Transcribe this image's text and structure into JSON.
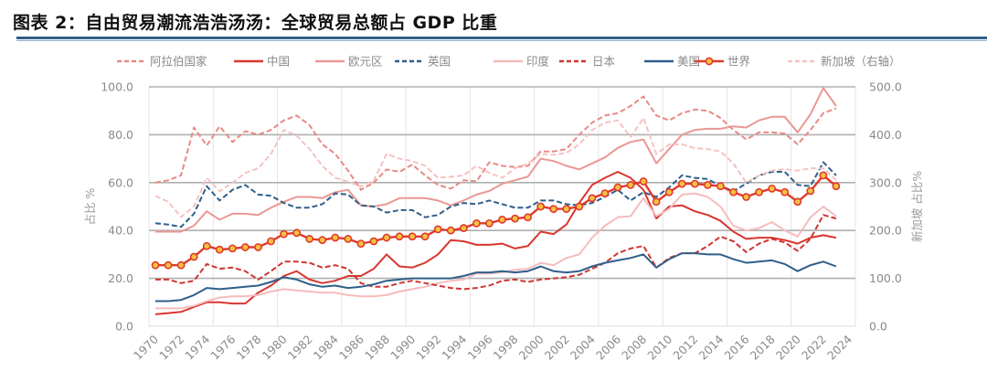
{
  "title": "图表 2：自由贸易潮流浩浩汤汤：全球贸易总额占 GDP 比重",
  "chart_data": {
    "type": "line",
    "title": "",
    "ylabel": "占比 %",
    "y2label": "新加坡 占比%",
    "ylim": [
      0,
      100
    ],
    "y2lim": [
      0,
      500
    ],
    "yticks": [
      "0.0",
      "20.0",
      "40.0",
      "60.0",
      "80.0",
      "100.0"
    ],
    "y2ticks": [
      "0.0",
      "100.0",
      "200.0",
      "300.0",
      "400.0",
      "500.0"
    ],
    "xticks": [
      "1970",
      "1972",
      "1974",
      "1976",
      "1978",
      "1980",
      "1982",
      "1984",
      "1986",
      "1988",
      "1990",
      "1992",
      "1994",
      "1996",
      "1998",
      "2000",
      "2002",
      "2004",
      "2006",
      "2008",
      "2010",
      "2012",
      "2014",
      "2016",
      "2018",
      "2020",
      "2022",
      "2024"
    ],
    "x_start": 1970,
    "x_end": 2024,
    "grid": "horizontal and vertical",
    "legend_position": "top",
    "series": [
      {
        "name": "阿拉伯国家",
        "style": "dashed",
        "color": "#e88a86",
        "axis": "left",
        "values": [
          60,
          61,
          63,
          83,
          75.5,
          83.5,
          77,
          81.5,
          80,
          82,
          86,
          88,
          84,
          76,
          72,
          65,
          57,
          60,
          65.5,
          64.5,
          67.5,
          63,
          59,
          57.5,
          61,
          60.5,
          68.5,
          67,
          66.5,
          67,
          73,
          73,
          74,
          80,
          85,
          88,
          89,
          92,
          96,
          88,
          86,
          89,
          90.5,
          90,
          87,
          82,
          78,
          81,
          81,
          80.5,
          76,
          82,
          89,
          91
        ]
      },
      {
        "name": "中国",
        "style": "solid",
        "color": "#d9362f",
        "axis": "left",
        "values": [
          5,
          5.5,
          6,
          8,
          10,
          10,
          9.5,
          9.5,
          14,
          17,
          21,
          23,
          19.5,
          18,
          19,
          21,
          21,
          24,
          30,
          25,
          24.5,
          26.5,
          30,
          36,
          35.5,
          34,
          34,
          34.5,
          32.5,
          33.5,
          39.5,
          38.5,
          42.5,
          51.5,
          59,
          62,
          64.5,
          62,
          57,
          45,
          50,
          50.5,
          48,
          46.5,
          44,
          39.5,
          36.5,
          37,
          37,
          36,
          34.5,
          37,
          38,
          37
        ]
      },
      {
        "name": "欧元区",
        "style": "solid",
        "color": "#eb9794",
        "axis": "left",
        "values": [
          39.5,
          39.5,
          39.5,
          42,
          48,
          44.5,
          47,
          47,
          46.5,
          49.5,
          52,
          54,
          54,
          53.5,
          56,
          57,
          50.5,
          50,
          51,
          53.5,
          53.5,
          53.5,
          52.5,
          50.5,
          52.5,
          55,
          56.5,
          59.5,
          61,
          62.5,
          70,
          69,
          67,
          65.5,
          68,
          70.5,
          74.5,
          77,
          78,
          68,
          74,
          80,
          82,
          82.5,
          82.5,
          83.5,
          83,
          86,
          87.5,
          87.5,
          81,
          88.5,
          99.5,
          92
        ]
      },
      {
        "name": "英国",
        "style": "dashed",
        "color": "#2f5f8a",
        "axis": "left",
        "values": [
          43,
          42.5,
          41.5,
          47,
          58.5,
          52.5,
          57,
          59,
          55,
          54.5,
          51.5,
          49.5,
          49.5,
          51,
          55.5,
          55,
          50.5,
          50,
          47.5,
          48.5,
          48.5,
          45.5,
          46.5,
          50,
          51.5,
          51,
          52.5,
          51,
          49.5,
          49.5,
          52.5,
          52.5,
          51,
          50.5,
          51.5,
          54,
          57,
          52.5,
          56,
          54,
          58,
          63,
          62,
          61.5,
          58.5,
          56.5,
          59.5,
          63,
          64.5,
          64.5,
          59,
          58.5,
          68.5,
          63
        ]
      },
      {
        "name": "印度",
        "style": "solid",
        "color": "#f5bcbc",
        "axis": "left",
        "values": [
          7.5,
          7.5,
          7.5,
          8.5,
          10.5,
          12,
          12.5,
          12.5,
          13,
          14.5,
          15.5,
          15,
          14.5,
          14,
          14,
          13,
          12.5,
          12.5,
          13,
          14.5,
          15.5,
          16.5,
          18,
          19,
          19.5,
          22,
          22,
          22.5,
          23.5,
          24,
          26.5,
          25.5,
          28.5,
          30,
          37,
          42,
          45.5,
          46,
          53.5,
          46,
          49,
          55,
          55.5,
          54,
          50,
          42,
          40,
          41,
          43.5,
          40,
          37.5,
          45.5,
          50,
          46
        ]
      },
      {
        "name": "日本",
        "style": "dashed",
        "color": "#cf3430",
        "axis": "left",
        "values": [
          19.5,
          19.5,
          18,
          19,
          26,
          24,
          24.5,
          23,
          19.5,
          23,
          27,
          27,
          26.5,
          24.5,
          25.5,
          24,
          18,
          16.5,
          16.5,
          18,
          19,
          18,
          17,
          16,
          15.5,
          16,
          17,
          19,
          19.5,
          18.5,
          19.5,
          20,
          20.5,
          21.5,
          24,
          26.5,
          30.5,
          32.5,
          33.5,
          24.5,
          28.5,
          30.5,
          30.5,
          33.5,
          37.5,
          35.5,
          31,
          34.5,
          36.5,
          35,
          31.5,
          36.5,
          46.5,
          45
        ]
      },
      {
        "name": "美国",
        "style": "solid",
        "color": "#2f5f8a",
        "axis": "left",
        "values": [
          10.5,
          10.5,
          11,
          13,
          16,
          15.5,
          16,
          16.5,
          17,
          18.5,
          20.5,
          19.5,
          17.5,
          16.5,
          17,
          16,
          16.5,
          17.5,
          19,
          19.5,
          20,
          20,
          20,
          20,
          21,
          22.5,
          22.5,
          23,
          22.5,
          23,
          25,
          23,
          22.5,
          23,
          25,
          26.5,
          27.5,
          28.5,
          30,
          24.5,
          28,
          30.5,
          30.5,
          30,
          30,
          28,
          26.5,
          27,
          27.5,
          26,
          23,
          25.5,
          27,
          25
        ]
      },
      {
        "name": "世界",
        "style": "solid-marker",
        "color": "#e03a2a",
        "marker_color": "#f5c242",
        "axis": "left",
        "values": [
          25.5,
          25.5,
          25.5,
          29,
          33.5,
          32,
          32.5,
          33,
          33,
          35.5,
          38.5,
          39,
          36.5,
          36,
          37,
          36.5,
          34.5,
          35.5,
          37,
          37.5,
          37.5,
          37.5,
          40.5,
          40,
          41,
          43,
          43,
          44.5,
          45,
          45.5,
          50,
          49,
          49,
          50,
          53.5,
          55.5,
          58,
          59,
          60.5,
          52,
          56,
          59.5,
          59.5,
          59,
          58.5,
          56,
          54,
          56,
          57.5,
          56,
          52,
          56.5,
          63,
          58.5
        ]
      },
      {
        "name": "新加坡（右轴）",
        "style": "dashed",
        "color": "#f6c2c2",
        "axis": "right",
        "values": [
          272,
          260,
          228,
          250,
          310,
          282,
          300,
          320,
          330,
          360,
          410,
          398,
          370,
          335,
          310,
          302,
          292,
          305,
          360,
          350,
          345,
          335,
          310,
          312,
          315,
          335,
          320,
          310,
          330,
          340,
          360,
          358,
          362,
          380,
          410,
          425,
          430,
          395,
          435,
          360,
          380,
          380,
          372,
          370,
          365,
          340,
          300,
          315,
          325,
          328,
          325,
          330,
          330,
          305
        ]
      }
    ]
  }
}
